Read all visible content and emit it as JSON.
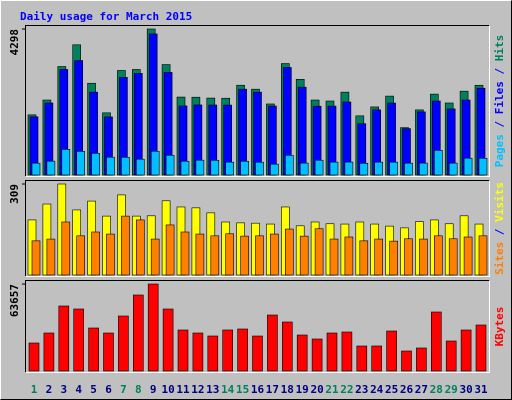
{
  "chart_data": [
    {
      "type": "bar",
      "title": "Daily usage for March 2015",
      "legend_separator": "/",
      "ylim": [
        0,
        4298
      ],
      "yticks": [
        4298
      ],
      "series": [
        {
          "name": "Hits",
          "color": "#00805c",
          "values": [
            1771,
            2207,
            3194,
            3833,
            2701,
            1830,
            3078,
            3107,
            4298,
            3252,
            2294,
            2290,
            2265,
            2260,
            2643,
            2526,
            2091,
            3281,
            2817,
            2207,
            2178,
            2439,
            1742,
            2004,
            2323,
            1394,
            1917,
            2381,
            2120,
            2468,
            2642
          ]
        },
        {
          "name": "Files",
          "color": "#0000ff",
          "values": [
            1713,
            2120,
            3107,
            3369,
            2439,
            1710,
            2875,
            2991,
            4153,
            3020,
            2033,
            2062,
            2060,
            2058,
            2526,
            2439,
            2030,
            3165,
            2585,
            2025,
            2028,
            2149,
            1510,
            1917,
            2118,
            1365,
            1858,
            2178,
            1946,
            2207,
            2555
          ]
        },
        {
          "name": "Pages",
          "color": "#00c0ff",
          "values": [
            348,
            407,
            755,
            697,
            639,
            523,
            521,
            465,
            699,
            581,
            405,
            436,
            433,
            377,
            404,
            376,
            319,
            580,
            350,
            435,
            378,
            380,
            345,
            379,
            377,
            348,
            350,
            726,
            349,
            494,
            492
          ]
        }
      ]
    },
    {
      "type": "bar",
      "legend_separator": "/",
      "ylim": [
        0,
        309
      ],
      "yticks": [
        309
      ],
      "series": [
        {
          "name": "Visits",
          "color": "#ffff00",
          "values": [
            187,
            241,
            309,
            221,
            251,
            200,
            272,
            200,
            201,
            252,
            231,
            228,
            211,
            180,
            177,
            176,
            173,
            231,
            167,
            180,
            174,
            173,
            180,
            173,
            166,
            160,
            181,
            187,
            174,
            201,
            173
          ]
        },
        {
          "name": "Sites",
          "color": "#ff8000",
          "values": [
            116,
            122,
            180,
            133,
            146,
            139,
            200,
            187,
            122,
            170,
            146,
            139,
            133,
            140,
            132,
            133,
            139,
            156,
            132,
            157,
            122,
            129,
            116,
            122,
            115,
            123,
            122,
            133,
            123,
            129,
            133
          ]
        }
      ]
    },
    {
      "type": "bar",
      "ylim": [
        0,
        63657
      ],
      "yticks": [
        63657
      ],
      "categories": [
        "1",
        "2",
        "3",
        "4",
        "5",
        "6",
        "7",
        "8",
        "9",
        "10",
        "11",
        "12",
        "13",
        "14",
        "15",
        "16",
        "17",
        "18",
        "19",
        "20",
        "21",
        "22",
        "23",
        "24",
        "25",
        "26",
        "27",
        "28",
        "29",
        "30",
        "31"
      ],
      "category_colors": [
        "#00805c",
        "#000080",
        "#000080",
        "#000080",
        "#000080",
        "#000080",
        "#00805c",
        "#00805c",
        "#000080",
        "#000080",
        "#000080",
        "#000080",
        "#000080",
        "#00805c",
        "#00805c",
        "#000080",
        "#000080",
        "#000080",
        "#000080",
        "#000080",
        "#00805c",
        "#00805c",
        "#000080",
        "#000080",
        "#000080",
        "#000080",
        "#000080",
        "#00805c",
        "#00805c",
        "#000080",
        "#000080"
      ],
      "series": [
        {
          "name": "KBytes",
          "color": "#ff0000",
          "values": [
            20488,
            27805,
            47561,
            45366,
            31463,
            27805,
            40244,
            55610,
            63657,
            45366,
            30000,
            27800,
            25610,
            30010,
            30732,
            25600,
            40976,
            35854,
            26341,
            23415,
            27810,
            28537,
            18293,
            18300,
            29268,
            14634,
            16829,
            43171,
            21951,
            30000,
            33659
          ]
        }
      ]
    }
  ]
}
